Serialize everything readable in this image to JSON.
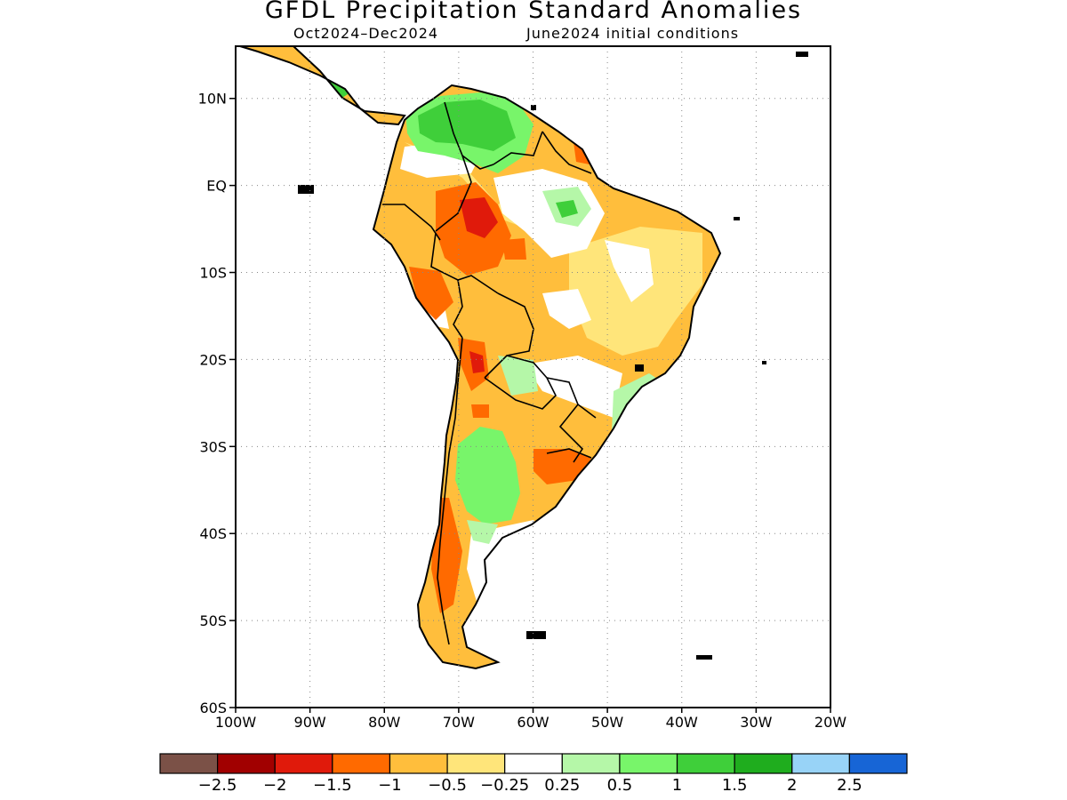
{
  "title": "GFDL Precipitation Standard Anomalies",
  "subtitle_period": "Oct2024–Dec2024",
  "subtitle_init": "June2024 initial conditions",
  "y_axis": {
    "ticks": [
      {
        "lat": 10,
        "label": "10N"
      },
      {
        "lat": 0,
        "label": "EQ"
      },
      {
        "lat": -10,
        "label": "10S"
      },
      {
        "lat": -20,
        "label": "20S"
      },
      {
        "lat": -30,
        "label": "30S"
      },
      {
        "lat": -40,
        "label": "40S"
      },
      {
        "lat": -50,
        "label": "50S"
      },
      {
        "lat": -60,
        "label": "60S"
      }
    ]
  },
  "x_axis": {
    "ticks": [
      {
        "lon": -100,
        "label": "100W"
      },
      {
        "lon": -90,
        "label": "90W"
      },
      {
        "lon": -80,
        "label": "80W"
      },
      {
        "lon": -70,
        "label": "70W"
      },
      {
        "lon": -60,
        "label": "60W"
      },
      {
        "lon": -50,
        "label": "50W"
      },
      {
        "lon": -40,
        "label": "40W"
      },
      {
        "lon": -30,
        "label": "30W"
      },
      {
        "lon": -20,
        "label": "20W"
      }
    ]
  },
  "map_extent": {
    "lon_min": -100,
    "lon_max": -20,
    "lat_min": -60,
    "lat_max": 16
  },
  "legend": {
    "colors": [
      "#7b5147",
      "#a10000",
      "#e01a0b",
      "#ff6a00",
      "#ffbe3c",
      "#ffe57a",
      "#ffffff",
      "#b5f7a8",
      "#78f56a",
      "#3fcf3a",
      "#1fad1e",
      "#98d3f7",
      "#1765d6"
    ],
    "labels": [
      "−2.5",
      "−2",
      "−1.5",
      "−1",
      "−0.5",
      "−0.25",
      "0.25",
      "0.5",
      "1",
      "1.5",
      "2",
      "2.5"
    ]
  }
}
